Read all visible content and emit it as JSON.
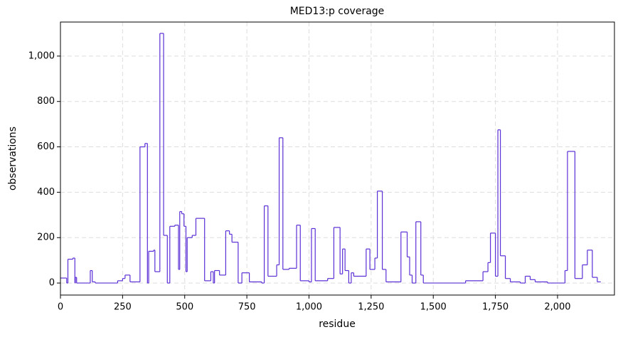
{
  "chart_data": {
    "type": "step",
    "title": "MED13:p coverage",
    "xlabel": "residue",
    "ylabel": "observations",
    "x": [
      0,
      25,
      30,
      50,
      58,
      60,
      65,
      120,
      128,
      140,
      230,
      250,
      260,
      280,
      320,
      340,
      350,
      355,
      375,
      380,
      400,
      415,
      430,
      440,
      460,
      475,
      480,
      488,
      497,
      505,
      510,
      530,
      545,
      580,
      605,
      615,
      620,
      640,
      665,
      680,
      690,
      715,
      730,
      760,
      810,
      820,
      835,
      870,
      880,
      895,
      920,
      950,
      965,
      1000,
      1010,
      1025,
      1075,
      1100,
      1125,
      1135,
      1145,
      1160,
      1170,
      1180,
      1230,
      1245,
      1265,
      1275,
      1295,
      1310,
      1370,
      1395,
      1405,
      1415,
      1430,
      1450,
      1460,
      1630,
      1700,
      1720,
      1730,
      1750,
      1760,
      1770,
      1790,
      1810,
      1850,
      1870,
      1890,
      1910,
      1960,
      2030,
      2040,
      2070,
      2100,
      2120,
      2140,
      2160,
      2174
    ],
    "series": [
      {
        "name": "coverage",
        "color": "#5b2fd6",
        "values": [
          22,
          0,
          105,
          110,
          0,
          25,
          0,
          55,
          5,
          0,
          10,
          20,
          35,
          5,
          600,
          615,
          0,
          140,
          145,
          50,
          1100,
          210,
          0,
          250,
          255,
          60,
          315,
          305,
          250,
          50,
          200,
          210,
          285,
          10,
          50,
          0,
          55,
          35,
          230,
          215,
          180,
          0,
          45,
          5,
          0,
          340,
          30,
          80,
          640,
          60,
          65,
          255,
          10,
          5,
          240,
          10,
          20,
          245,
          40,
          150,
          55,
          0,
          45,
          30,
          150,
          60,
          110,
          405,
          60,
          5,
          225,
          115,
          35,
          0,
          270,
          35,
          0,
          10,
          50,
          90,
          220,
          30,
          675,
          120,
          20,
          5,
          0,
          30,
          15,
          5,
          0,
          55,
          580,
          20,
          80,
          145,
          25,
          5,
          5
        ]
      }
    ],
    "xlim": [
      0,
      2229
    ],
    "ylim": [
      -53,
      1150
    ],
    "xticks": [
      0,
      250,
      500,
      750,
      {
        "value": 1000,
        "label": "1,000"
      },
      {
        "value": 1250,
        "label": "1,250"
      },
      {
        "value": 1500,
        "label": "1,500"
      },
      {
        "value": 1750,
        "label": "1,750"
      },
      {
        "value": 2000,
        "label": "2,000"
      }
    ],
    "yticks": [
      0,
      200,
      400,
      600,
      800,
      {
        "value": 1000,
        "label": "1,000"
      }
    ],
    "grid": true
  }
}
